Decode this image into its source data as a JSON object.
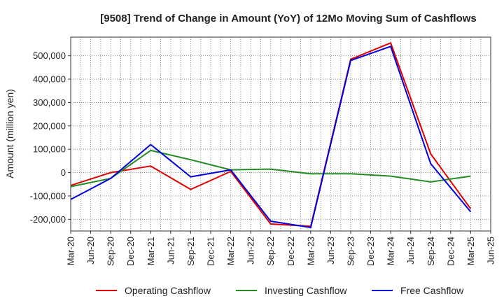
{
  "chart_data": {
    "type": "line",
    "title": "[9508]  Trend of Change in Amount (YoY) of 12Mo Moving Sum of Cashflows",
    "xlabel": "",
    "ylabel": "Amount (million yen)",
    "ylim": [
      -250000,
      580000
    ],
    "yticks": [
      -200000,
      -100000,
      0,
      100000,
      200000,
      300000,
      400000,
      500000
    ],
    "ytick_labels": [
      "-200,000",
      "-100,000",
      "0",
      "100,000",
      "200,000",
      "300,000",
      "400,000",
      "500,000"
    ],
    "categories": [
      "Mar-20",
      "Jun-20",
      "Sep-20",
      "Dec-20",
      "Mar-21",
      "Jun-21",
      "Sep-21",
      "Dec-21",
      "Mar-22",
      "Jun-22",
      "Sep-22",
      "Dec-22",
      "Mar-23",
      "Jun-23",
      "Sep-23",
      "Dec-23",
      "Mar-24",
      "Jun-24",
      "Sep-24",
      "Dec-24",
      "Mar-25",
      "Jun-25"
    ],
    "grid": true,
    "legend_position": "bottom",
    "series": [
      {
        "name": "Operating Cashflow",
        "color": "#e00000",
        "points": [
          [
            0,
            -55000
          ],
          [
            2,
            0
          ],
          [
            4,
            28000
          ],
          [
            6,
            -72000
          ],
          [
            8,
            5000
          ],
          [
            10,
            -220000
          ],
          [
            12,
            -230000
          ],
          [
            14,
            485000
          ],
          [
            16,
            555000
          ],
          [
            18,
            80000
          ],
          [
            20,
            -155000
          ]
        ]
      },
      {
        "name": "Investing Cashflow",
        "color": "#228b22",
        "points": [
          [
            0,
            -60000
          ],
          [
            2,
            -25000
          ],
          [
            4,
            95000
          ],
          [
            6,
            55000
          ],
          [
            8,
            12000
          ],
          [
            10,
            15000
          ],
          [
            12,
            -5000
          ],
          [
            14,
            -5000
          ],
          [
            16,
            -15000
          ],
          [
            18,
            -40000
          ],
          [
            20,
            -15000
          ]
        ]
      },
      {
        "name": "Free Cashflow",
        "color": "#0000dd",
        "points": [
          [
            0,
            -115000
          ],
          [
            2,
            -25000
          ],
          [
            4,
            120000
          ],
          [
            6,
            -18000
          ],
          [
            8,
            12000
          ],
          [
            10,
            -208000
          ],
          [
            12,
            -235000
          ],
          [
            14,
            480000
          ],
          [
            16,
            540000
          ],
          [
            18,
            38000
          ],
          [
            20,
            -168000
          ]
        ]
      }
    ]
  }
}
